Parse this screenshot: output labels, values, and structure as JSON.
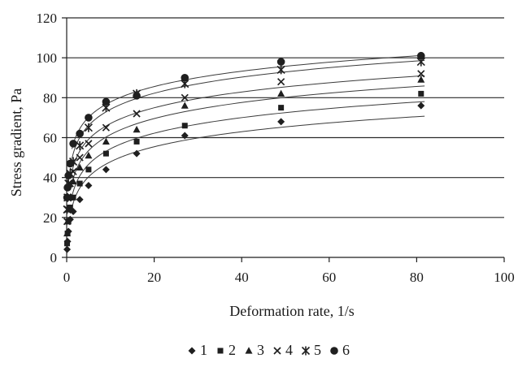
{
  "chart_data": {
    "type": "scatter",
    "title": "",
    "xlabel": "Deformation rate, 1/s",
    "ylabel": "Stress gradient, Pa",
    "xlim": [
      0,
      100
    ],
    "ylim": [
      0,
      120
    ],
    "xticks": [
      0,
      20,
      40,
      60,
      80,
      100
    ],
    "yticks": [
      0,
      20,
      40,
      60,
      80,
      100,
      120
    ],
    "grid": "horizontal",
    "legend_position": "bottom",
    "trendlines": "logarithmic",
    "series": [
      {
        "name": "1",
        "marker": "diamond",
        "x": [
          0.1,
          0.2,
          0.4,
          0.8,
          1.5,
          3,
          5,
          9,
          16,
          27,
          49,
          81
        ],
        "y": [
          4,
          8,
          13,
          19,
          23,
          29,
          36,
          44,
          52,
          61,
          68,
          76
        ]
      },
      {
        "name": "2",
        "marker": "square",
        "x": [
          0.1,
          0.2,
          0.4,
          0.8,
          1.5,
          3,
          5,
          9,
          16,
          27,
          49,
          81
        ],
        "y": [
          7,
          12,
          18,
          25,
          30,
          37,
          44,
          52,
          58,
          66,
          75,
          82
        ]
      },
      {
        "name": "3",
        "marker": "triangle",
        "x": [
          0.1,
          0.2,
          0.4,
          0.8,
          1.5,
          3,
          5,
          9,
          16,
          27,
          49,
          81
        ],
        "y": [
          12,
          18,
          24,
          30,
          38,
          45,
          51,
          58,
          64,
          76,
          82,
          89
        ]
      },
      {
        "name": "4",
        "marker": "x",
        "x": [
          0.1,
          0.2,
          0.4,
          0.8,
          1.5,
          3,
          5,
          9,
          16,
          27,
          49,
          81
        ],
        "y": [
          18,
          24,
          30,
          37,
          43,
          50,
          57,
          65,
          72,
          80,
          88,
          92
        ]
      },
      {
        "name": "5",
        "marker": "star",
        "x": [
          0.1,
          0.2,
          0.4,
          0.8,
          1.5,
          3,
          5,
          9,
          16,
          27,
          49,
          81
        ],
        "y": [
          24,
          30,
          37,
          42,
          48,
          56,
          65,
          75,
          82,
          87,
          94,
          98
        ]
      },
      {
        "name": "6",
        "marker": "circle",
        "x": [
          0.1,
          0.2,
          0.4,
          0.8,
          1.5,
          3,
          5,
          9,
          16,
          27,
          49,
          81
        ],
        "y": [
          30,
          35,
          41,
          47,
          57,
          62,
          70,
          78,
          81,
          90,
          98,
          101
        ]
      }
    ]
  }
}
